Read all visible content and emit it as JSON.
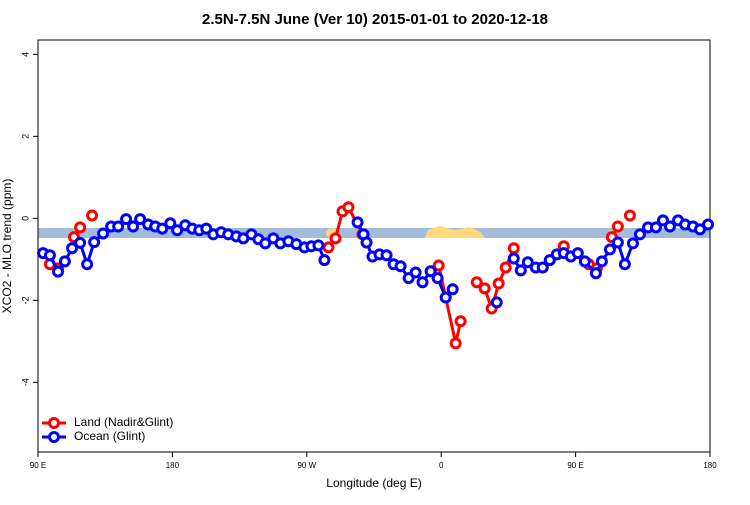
{
  "chart_data": {
    "type": "line",
    "title": "2.5N-7.5N June (Ver 10)   2015-01-01 to 2020-12-18",
    "x_label": "Longitude (deg E)",
    "y_label": "XCO2 - MLO trend (ppm)",
    "xlim": [
      90,
      540
    ],
    "xticks": [
      {
        "value": 90,
        "label": "90 E"
      },
      {
        "value": 180,
        "label": "180"
      },
      {
        "value": 270,
        "label": "90 W"
      },
      {
        "value": 360,
        "label": "0"
      },
      {
        "value": 450,
        "label": "90 E"
      },
      {
        "value": 540,
        "label": "180"
      }
    ],
    "ylim": [
      -5.7,
      4.35
    ],
    "yticks": [
      -4,
      -2,
      0,
      2,
      4
    ],
    "legend": "bottom-left",
    "series": [
      {
        "name": "Land (Nadir&Glint)",
        "color": "#ff0000",
        "x": [
          98,
          103.4,
          null,
          114.1,
          118.2,
          null,
          126.2,
          null,
          284.5,
          289.2,
          293.9,
          297.9,
          307.3,
          null,
          358.3,
          369.7,
          373,
          null,
          383.8,
          389.1,
          393.8,
          398.5,
          403.2,
          408.6,
          null,
          442.1,
          null,
          458.9,
          464.2,
          null,
          474.3,
          478.3,
          null,
          486.4
        ],
        "values": [
          -1.12,
          -1.22,
          null,
          -0.46,
          -0.22,
          null,
          0.07,
          null,
          -0.71,
          -0.49,
          0.17,
          0.27,
          -0.39,
          null,
          -1.15,
          -3.05,
          -2.51,
          null,
          -1.56,
          -1.71,
          -2.2,
          -1.59,
          -1.2,
          -0.73,
          null,
          -0.68,
          null,
          -1.12,
          -1.22,
          null,
          -0.46,
          -0.2,
          null,
          0.07
        ]
      },
      {
        "name": "Ocean (Glint)",
        "color": "#0000ff",
        "x": [
          93.4,
          98,
          103.4,
          108,
          112.8,
          118.2,
          122.9,
          127.6,
          133.6,
          139,
          143.7,
          149,
          153.7,
          158.4,
          163.8,
          168.5,
          173.2,
          178.6,
          183.2,
          188.6,
          193.3,
          198,
          202.7,
          207.4,
          212.7,
          217.4,
          222.8,
          227.5,
          232.9,
          237.6,
          242.2,
          247.6,
          252.3,
          257.7,
          263,
          268.4,
          273.1,
          277.8,
          281.8,
          null,
          304,
          308,
          310,
          314,
          318.7,
          323.4,
          328.1,
          332.8,
          338.2,
          342.9,
          347.5,
          352.9,
          357.6,
          363,
          367.7,
          null,
          397.2,
          null,
          408.6,
          413.3,
          418,
          423.3,
          428,
          432.7,
          437.4,
          442.1,
          446.8,
          451.5,
          456.2,
          463.6,
          467.6,
          473,
          478.3,
          483,
          488.4,
          493.1,
          498.5,
          503.8,
          508.5,
          513.2,
          518.6,
          523.3,
          528.6,
          533.3,
          538.7
        ],
        "values": [
          -0.85,
          -0.9,
          -1.3,
          -1.05,
          -0.73,
          -0.6,
          -1.12,
          -0.58,
          -0.37,
          -0.2,
          -0.2,
          -0.02,
          -0.2,
          -0.02,
          -0.15,
          -0.2,
          -0.25,
          -0.12,
          -0.29,
          -0.17,
          -0.25,
          -0.29,
          -0.25,
          -0.39,
          -0.34,
          -0.39,
          -0.44,
          -0.49,
          -0.39,
          -0.51,
          -0.61,
          -0.49,
          -0.61,
          -0.56,
          -0.63,
          -0.71,
          -0.68,
          -0.66,
          -1.02,
          null,
          -0.1,
          -0.39,
          -0.59,
          -0.93,
          -0.88,
          -0.9,
          -1.12,
          -1.17,
          -1.46,
          -1.32,
          -1.56,
          -1.29,
          -1.46,
          -1.93,
          -1.73,
          null,
          -2.05,
          null,
          -0.98,
          -1.27,
          -1.07,
          -1.2,
          -1.2,
          -1.02,
          -0.88,
          -0.85,
          -0.93,
          -0.85,
          -1.05,
          -1.34,
          -1.05,
          -0.76,
          -0.59,
          -1.12,
          -0.61,
          -0.39,
          -0.22,
          -0.22,
          -0.05,
          -0.2,
          -0.05,
          -0.15,
          -0.2,
          -0.27,
          -0.15
        ]
      }
    ]
  }
}
